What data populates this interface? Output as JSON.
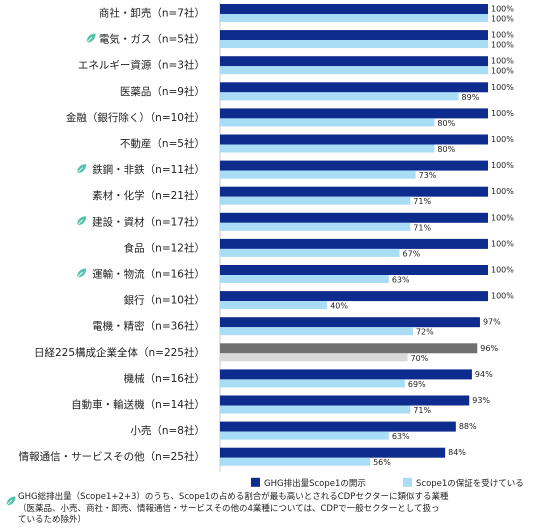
{
  "chart_data": {
    "type": "bar",
    "orientation": "horizontal",
    "xlim": [
      0,
      100
    ],
    "grid": false,
    "legend_position": "bottom-right",
    "categories": [
      "商社・卸売（n=7社）",
      "電気・ガス（n=5社）",
      "エネルギー資源（n=3社）",
      "医薬品（n=9社）",
      "金融（銀行除く）（n=10社）",
      "不動産（n=5社）",
      "鉄鋼・非鉄（n=11社）",
      "素材・化学（n=21社）",
      "建設・資材（n=17社）",
      "食品（n=12社）",
      "運輸・物流（n=16社）",
      "銀行（n=10社）",
      "電機・精密（n=36社）",
      "日経225構成企業全体（n=225社）",
      "機械（n=16社）",
      "自動車・輸送機（n=14社）",
      "小売（n=8社）",
      "情報通信・サービスその他（n=25社）"
    ],
    "leaf_marked": [
      false,
      true,
      false,
      false,
      false,
      false,
      true,
      false,
      true,
      false,
      true,
      false,
      false,
      false,
      false,
      false,
      false,
      false
    ],
    "highlight_index": 13,
    "series": [
      {
        "name": "GHG排出量Scope1の開示",
        "color": "#0e2c8e",
        "highlight_color": "#707070",
        "values": [
          100,
          100,
          100,
          100,
          100,
          100,
          100,
          100,
          100,
          100,
          100,
          100,
          97,
          96,
          94,
          93,
          88,
          84
        ],
        "labels": [
          "100%",
          "100%",
          "100%",
          "100%",
          "100%",
          "100%",
          "100%",
          "100%",
          "100%",
          "100%",
          "100%",
          "100%",
          "97%",
          "96%",
          "94%",
          "93%",
          "88%",
          "84%"
        ]
      },
      {
        "name": "Scope1の保証を受けている",
        "color": "#a8ddf5",
        "highlight_color": "#d9d9d9",
        "values": [
          100,
          100,
          100,
          89,
          80,
          80,
          73,
          71,
          71,
          67,
          63,
          40,
          72,
          70,
          69,
          71,
          63,
          56
        ],
        "labels": [
          "100%",
          "100%",
          "100%",
          "89%",
          "80%",
          "80%",
          "73%",
          "71%",
          "71%",
          "67%",
          "63%",
          "40%",
          "72%",
          "70%",
          "69%",
          "71%",
          "63%",
          "56%"
        ]
      }
    ]
  },
  "leaf_color": "#4fc3a8",
  "footnote": {
    "line1": "GHG総排出量（Scope1+2+3）のうち、Scope1の占める割合が最も高いとされるCDPセクターに類似する業種",
    "line2": "（医薬品、小売、商社・卸売、情報通信・サービスその他の4業種については、CDPで一般セクターとして扱っ",
    "line3": "ているため除外）"
  }
}
